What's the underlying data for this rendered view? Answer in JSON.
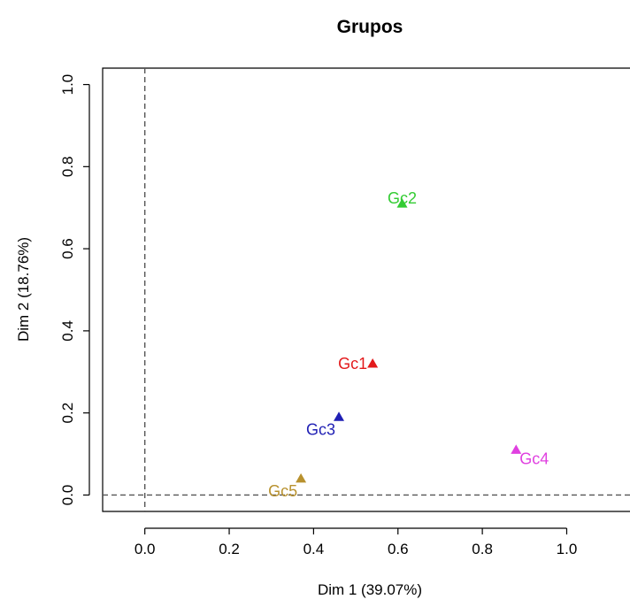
{
  "chart_data": {
    "type": "scatter",
    "title": "Grupos",
    "xlabel": "Dim 1 (39.07%)",
    "ylabel": "Dim 2 (18.76%)",
    "xlim": [
      -0.1,
      1.15
    ],
    "ylim": [
      -0.04,
      1.04
    ],
    "xticks": [
      "0.0",
      "0.2",
      "0.4",
      "0.6",
      "0.8",
      "1.0"
    ],
    "yticks": [
      "0.0",
      "0.2",
      "0.4",
      "0.6",
      "0.8",
      "1.0"
    ],
    "reference_lines": {
      "x": 0,
      "y": 0,
      "style": "dashed"
    },
    "grid": false,
    "marker": "triangle",
    "points": [
      {
        "label": "Gc1",
        "x": 0.54,
        "y": 0.32,
        "color": "#e31a1c",
        "label_position": "left"
      },
      {
        "label": "Gc2",
        "x": 0.61,
        "y": 0.71,
        "color": "#33cc33",
        "label_position": "center"
      },
      {
        "label": "Gc3",
        "x": 0.46,
        "y": 0.19,
        "color": "#1f1fb4",
        "label_position": "below-left"
      },
      {
        "label": "Gc4",
        "x": 0.88,
        "y": 0.11,
        "color": "#e040e0",
        "label_position": "below-right"
      },
      {
        "label": "Gc5",
        "x": 0.37,
        "y": 0.04,
        "color": "#b8912e",
        "label_position": "below-left"
      }
    ]
  }
}
